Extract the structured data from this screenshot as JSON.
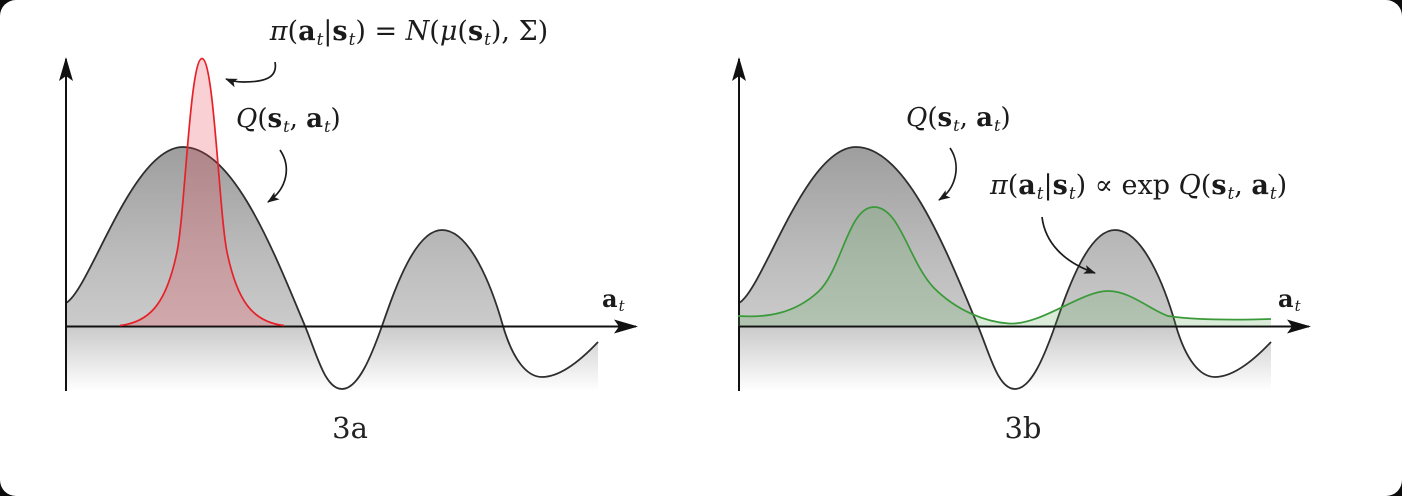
{
  "figure": {
    "description": "Two schematic plots comparing a unimodal Gaussian policy (3a) with an energy-based policy proportional to exp Q (3b) over a multimodal Q-function",
    "colors": {
      "axis": "#111111",
      "q_stroke": "#2e2e2e",
      "q_fill_top": "#9e9e9e",
      "q_fill_mid": "#bcbcbc",
      "q_fill_axis": "#cbcbcb",
      "q_fill_bottom": "#ffffff",
      "policy_red": "#e62129",
      "policy_red_fill": "rgba(230,57,70,0.24)",
      "policy_green": "#3a9a3a",
      "policy_green_fill": "rgba(96,168,85,0.22)",
      "text": "#1b1b1b"
    },
    "panels": [
      {
        "caption": "3a",
        "axis_label": [
          {
            "t": "a",
            "s": "bf"
          },
          {
            "t": "t",
            "s": "sub"
          }
        ],
        "labels": {
          "policy": [
            {
              "t": "π",
              "s": "it"
            },
            {
              "t": "(",
              "s": "up"
            },
            {
              "t": "a",
              "s": "bf"
            },
            {
              "t": "t",
              "s": "sub"
            },
            {
              "t": "|",
              "s": "up"
            },
            {
              "t": "s",
              "s": "bf"
            },
            {
              "t": "t",
              "s": "sub"
            },
            {
              "t": ") = ",
              "s": "up"
            },
            {
              "t": "N",
              "s": "cal"
            },
            {
              "t": "(",
              "s": "up"
            },
            {
              "t": "μ",
              "s": "it"
            },
            {
              "t": "(",
              "s": "up"
            },
            {
              "t": "s",
              "s": "bf"
            },
            {
              "t": "t",
              "s": "sub"
            },
            {
              "t": "), Σ)",
              "s": "up"
            }
          ],
          "q": [
            {
              "t": "Q",
              "s": "it"
            },
            {
              "t": "(",
              "s": "up"
            },
            {
              "t": "s",
              "s": "bf"
            },
            {
              "t": "t",
              "s": "sub"
            },
            {
              "t": ", ",
              "s": "up"
            },
            {
              "t": "a",
              "s": "bf"
            },
            {
              "t": "t",
              "s": "sub"
            },
            {
              "t": ")",
              "s": "up"
            }
          ]
        }
      },
      {
        "caption": "3b",
        "axis_label": [
          {
            "t": "a",
            "s": "bf"
          },
          {
            "t": "t",
            "s": "sub"
          }
        ],
        "labels": {
          "q": [
            {
              "t": "Q",
              "s": "it"
            },
            {
              "t": "(",
              "s": "up"
            },
            {
              "t": "s",
              "s": "bf"
            },
            {
              "t": "t",
              "s": "sub"
            },
            {
              "t": ", ",
              "s": "up"
            },
            {
              "t": "a",
              "s": "bf"
            },
            {
              "t": "t",
              "s": "sub"
            },
            {
              "t": ")",
              "s": "up"
            }
          ],
          "policy": [
            {
              "t": "π",
              "s": "it"
            },
            {
              "t": "(",
              "s": "up"
            },
            {
              "t": "a",
              "s": "bf"
            },
            {
              "t": "t",
              "s": "sub"
            },
            {
              "t": "|",
              "s": "up"
            },
            {
              "t": "s",
              "s": "bf"
            },
            {
              "t": "t",
              "s": "sub"
            },
            {
              "t": ") ∝ exp ",
              "s": "up"
            },
            {
              "t": "Q",
              "s": "it"
            },
            {
              "t": "(",
              "s": "up"
            },
            {
              "t": "s",
              "s": "bf"
            },
            {
              "t": "t",
              "s": "sub"
            },
            {
              "t": ", ",
              "s": "up"
            },
            {
              "t": "a",
              "s": "bf"
            },
            {
              "t": "t",
              "s": "sub"
            },
            {
              "t": ")",
              "s": "up"
            }
          ]
        }
      }
    ]
  }
}
